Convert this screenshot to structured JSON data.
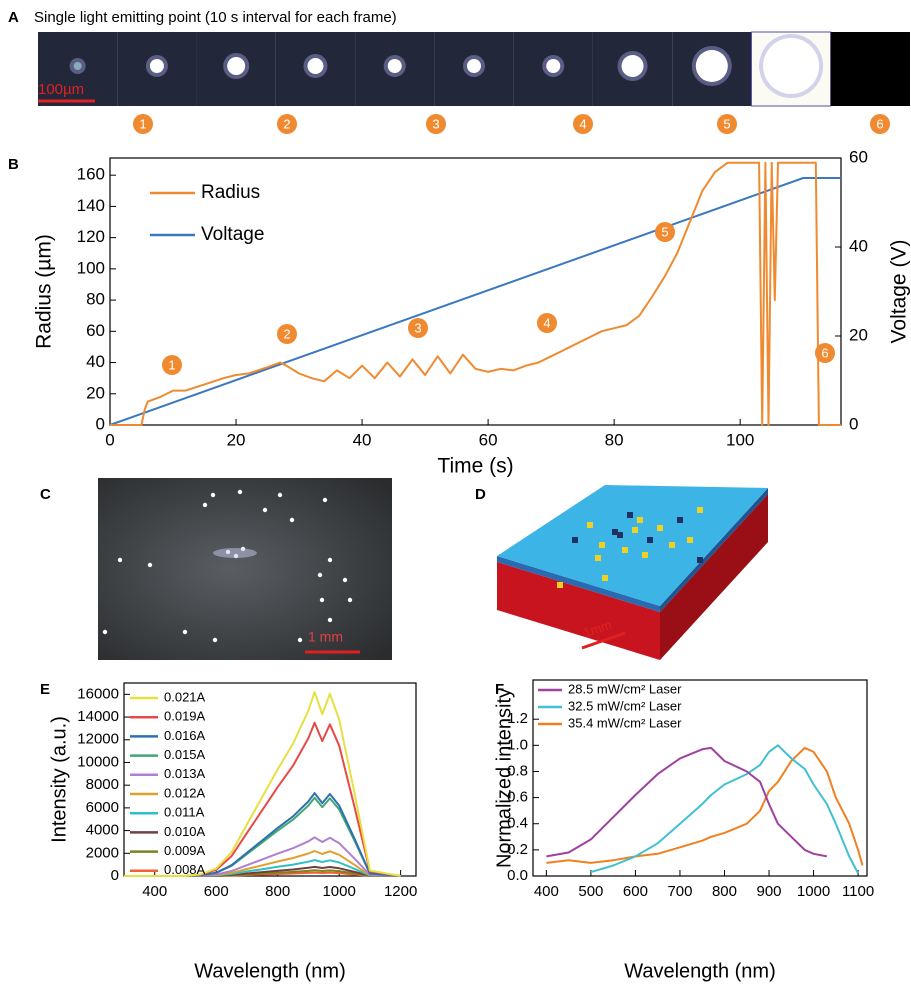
{
  "figure": {
    "panel_a": {
      "label": "A",
      "title": "Single light emitting point (10 s interval for each frame)",
      "scale_bar": "100µm",
      "markers": [
        "1",
        "2",
        "3",
        "4",
        "5",
        "6"
      ]
    },
    "panel_c": {
      "label": "C",
      "scale_bar": "1 mm"
    },
    "panel_d": {
      "label": "D",
      "scale_bar": "1mm"
    }
  },
  "chart_data": [
    {
      "type": "line",
      "panel_label": "B",
      "x_label": "Time (s)",
      "y_label": "Radius (µm)",
      "y2_label": "Voltage (V)",
      "xlim": [
        0,
        116
      ],
      "xticks": [
        0,
        20,
        40,
        60,
        80,
        100
      ],
      "ylim": [
        0,
        171
      ],
      "yticks": [
        0,
        20,
        40,
        60,
        80,
        100,
        120,
        140,
        160
      ],
      "y2lim": [
        0,
        60
      ],
      "y2ticks": [
        0,
        20,
        40,
        60
      ],
      "legend": "upper left",
      "annotations": [
        "1",
        "2",
        "3",
        "4",
        "5",
        "6"
      ],
      "series": [
        {
          "name": "Radius",
          "color": "#f08a30",
          "x": [
            0,
            5,
            5.5,
            6,
            8,
            10,
            12,
            15,
            18,
            20,
            22,
            25,
            27,
            28,
            30,
            32,
            34,
            36,
            38,
            40,
            42,
            44,
            46,
            48,
            50,
            52,
            54,
            56,
            58,
            60,
            62,
            64,
            66,
            68,
            70,
            72,
            74,
            76,
            78,
            80,
            82,
            84,
            86,
            88,
            90,
            92,
            94,
            96,
            98,
            100,
            102,
            103,
            103.5,
            104,
            104.5,
            105,
            105.5,
            106,
            108,
            110,
            112,
            112.5,
            114,
            116
          ],
          "values": [
            0,
            0,
            10,
            15,
            18,
            22,
            22,
            26,
            30,
            32,
            33,
            37,
            40,
            38,
            33,
            30,
            28,
            35,
            30,
            38,
            30,
            40,
            31,
            42,
            32,
            44,
            33,
            45,
            36,
            34,
            36,
            35,
            38,
            40,
            44,
            48,
            52,
            56,
            60,
            62,
            64,
            70,
            82,
            95,
            110,
            130,
            150,
            162,
            168,
            168,
            168,
            168,
            0,
            168,
            0,
            168,
            80,
            168,
            168,
            168,
            168,
            0,
            0,
            0
          ]
        },
        {
          "name": "Voltage",
          "color": "#3a78c0",
          "axis": "y2",
          "x": [
            0,
            110,
            116
          ],
          "values": [
            0,
            55.5,
            55.5
          ]
        }
      ]
    },
    {
      "type": "line",
      "panel_label": "E",
      "x_label": "Wavelength (nm)",
      "y_label": "Intensity (a.u.)",
      "xlim": [
        300,
        1250
      ],
      "xticks": [
        400,
        600,
        800,
        1000,
        1200
      ],
      "ylim": [
        0,
        17000
      ],
      "yticks": [
        0,
        2000,
        4000,
        6000,
        8000,
        10000,
        12000,
        14000,
        16000
      ],
      "legend": "upper left",
      "x": [
        300,
        400,
        500,
        550,
        600,
        650,
        700,
        750,
        800,
        850,
        900,
        920,
        945,
        970,
        1000,
        1050,
        1100,
        1200
      ],
      "series": [
        {
          "name": "0.021A",
          "color": "#e6e040",
          "values": [
            0,
            0,
            0,
            162,
            648,
            2106,
            4536,
            6966,
            9396,
            11664,
            14580,
            16200,
            14256,
            16038,
            13770,
            7290,
            486,
            0
          ]
        },
        {
          "name": "0.019A",
          "color": "#e84848",
          "values": [
            0,
            0,
            0,
            135,
            540,
            1755,
            3780,
            5805,
            7830,
            9720,
            12150,
            13500,
            11880,
            13365,
            11475,
            6075,
            405,
            0
          ]
        },
        {
          "name": "0.016A",
          "color": "#3070b0",
          "values": [
            0,
            0,
            0,
            73,
            292,
            949,
            2044,
            3139,
            4234,
            5256,
            6570,
            7300,
            6424,
            7227,
            6205,
            3285,
            219,
            0
          ]
        },
        {
          "name": "0.015A",
          "color": "#40a870",
          "values": [
            0,
            0,
            0,
            69,
            276,
            897,
            1932,
            2967,
            4002,
            4968,
            6210,
            6900,
            6072,
            6831,
            5865,
            3105,
            207,
            0
          ]
        },
        {
          "name": "0.013A",
          "color": "#b080d0",
          "values": [
            0,
            0,
            0,
            34,
            136,
            442,
            952,
            1462,
            1972,
            2448,
            3060,
            3400,
            2992,
            3366,
            2890,
            1530,
            102,
            0
          ]
        },
        {
          "name": "0.012A",
          "color": "#e0a030",
          "values": [
            0,
            0,
            0,
            22,
            88,
            286,
            616,
            946,
            1276,
            1584,
            1980,
            2200,
            1936,
            2178,
            1870,
            990,
            66,
            0
          ]
        },
        {
          "name": "0.011A",
          "color": "#30c0c0",
          "values": [
            0,
            0,
            0,
            14,
            56,
            182,
            392,
            602,
            812,
            1008,
            1260,
            1400,
            1232,
            1386,
            1190,
            630,
            42,
            0
          ]
        },
        {
          "name": "0.010A",
          "color": "#704040",
          "values": [
            0,
            0,
            0,
            8,
            32,
            104,
            224,
            344,
            464,
            576,
            720,
            800,
            704,
            792,
            680,
            360,
            24,
            0
          ]
        },
        {
          "name": "0.009A",
          "color": "#808020",
          "values": [
            0,
            0,
            0,
            5,
            20,
            65,
            140,
            215,
            290,
            360,
            450,
            500,
            440,
            495,
            425,
            225,
            15,
            0
          ]
        },
        {
          "name": "0.008A",
          "color": "#f06030",
          "values": [
            0,
            0,
            0,
            3,
            12,
            39,
            84,
            129,
            174,
            216,
            270,
            300,
            264,
            297,
            255,
            135,
            9,
            0
          ]
        }
      ]
    },
    {
      "type": "line",
      "panel_label": "F",
      "x_label": "Wavelength (nm)",
      "y_label": "Normalized intensity",
      "xlim": [
        370,
        1120
      ],
      "xticks": [
        400,
        500,
        600,
        700,
        800,
        900,
        1000,
        1100
      ],
      "ylim": [
        0,
        1.5
      ],
      "yticks": [
        {
          "value": 0,
          "label": "0.0"
        },
        0.2,
        0.4,
        0.6,
        0.8,
        {
          "value": 1,
          "label": "1.0"
        },
        1.2
      ],
      "legend": "upper left",
      "x": [
        400,
        450,
        500,
        550,
        600,
        650,
        700,
        750,
        770,
        800,
        850,
        880,
        900,
        920,
        950,
        980,
        1000,
        1030,
        1050,
        1080,
        1100,
        1110
      ],
      "series": [
        {
          "name": "28.5 mW/cm² Laser",
          "color": "#a040a0",
          "values": [
            0.15,
            0.18,
            0.28,
            0.45,
            0.62,
            0.78,
            0.9,
            0.97,
            0.98,
            0.88,
            0.8,
            0.72,
            0.55,
            0.4,
            0.3,
            0.2,
            0.17,
            0.15,
            null,
            null,
            null,
            null
          ]
        },
        {
          "name": "32.5 mW/cm² Laser",
          "color": "#40c0d0",
          "values": [
            null,
            null,
            0.03,
            0.08,
            0.15,
            0.25,
            0.4,
            0.55,
            0.62,
            0.7,
            0.78,
            0.85,
            0.95,
            1.0,
            0.9,
            0.82,
            0.7,
            0.55,
            0.4,
            0.15,
            0.02,
            null
          ]
        },
        {
          "name": "35.4 mW/cm² Laser",
          "color": "#f08020",
          "values": [
            0.1,
            0.12,
            0.1,
            0.12,
            0.15,
            0.17,
            0.22,
            0.27,
            0.3,
            0.33,
            0.4,
            0.5,
            0.65,
            0.72,
            0.88,
            0.98,
            0.95,
            0.8,
            0.6,
            0.4,
            0.2,
            0.08
          ]
        }
      ]
    }
  ]
}
